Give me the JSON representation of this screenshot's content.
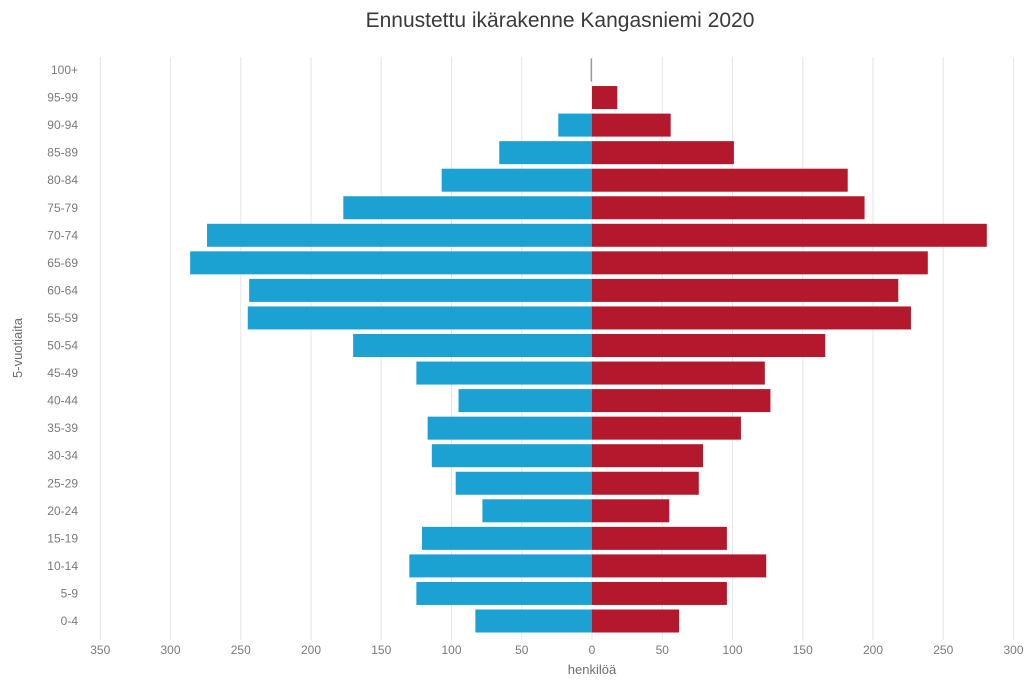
{
  "chart_data": {
    "type": "bar",
    "orientation": "horizontal",
    "layout": "population-pyramid",
    "title": "Ennustettu ikärakenne Kangasniemi 2020",
    "xlabel": "henkilöä",
    "ylabel": "5-vuotiaita",
    "xlim": [
      -350,
      300
    ],
    "x_ticks": [
      -350,
      -300,
      -250,
      -200,
      -150,
      -100,
      -50,
      0,
      50,
      100,
      150,
      200,
      250,
      300
    ],
    "x_tick_labels": [
      "350",
      "300",
      "250",
      "200",
      "150",
      "100",
      "50",
      "0",
      "50",
      "100",
      "150",
      "200",
      "250",
      "300"
    ],
    "grid": "vertical",
    "legend": "none",
    "categories": [
      "100+",
      "95-99",
      "90-94",
      "85-89",
      "80-84",
      "75-79",
      "70-74",
      "65-69",
      "60-64",
      "55-59",
      "50-54",
      "45-49",
      "40-44",
      "35-39",
      "30-34",
      "25-29",
      "20-24",
      "15-19",
      "10-14",
      "5-9",
      "0-4"
    ],
    "series": [
      {
        "color": "#1ba1d2",
        "side": "left",
        "values": [
          1,
          0,
          24,
          66,
          107,
          177,
          274,
          286,
          244,
          245,
          170,
          125,
          95,
          117,
          114,
          97,
          78,
          121,
          130,
          125,
          83
        ]
      },
      {
        "color": "#b4182c",
        "side": "right",
        "values": [
          0,
          18,
          56,
          101,
          182,
          194,
          281,
          239,
          218,
          227,
          166,
          123,
          127,
          106,
          79,
          76,
          55,
          96,
          124,
          96,
          62
        ]
      }
    ]
  }
}
